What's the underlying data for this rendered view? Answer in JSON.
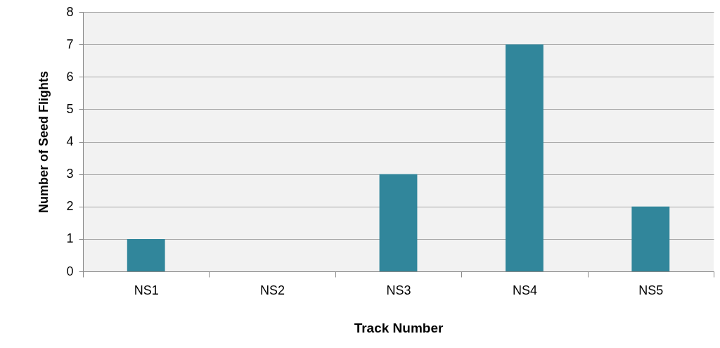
{
  "chart_data": {
    "type": "bar",
    "xlabel": "Track Number",
    "ylabel": "Number of Seed Flights",
    "categories": [
      "NS1",
      "NS2",
      "NS3",
      "NS4",
      "NS5"
    ],
    "values": [
      1,
      0,
      3,
      7,
      2
    ],
    "color": "#31869b",
    "ylim": [
      0,
      8
    ],
    "yticks": [
      0,
      1,
      2,
      3,
      4,
      5,
      6,
      7,
      8
    ],
    "grid": "y"
  }
}
